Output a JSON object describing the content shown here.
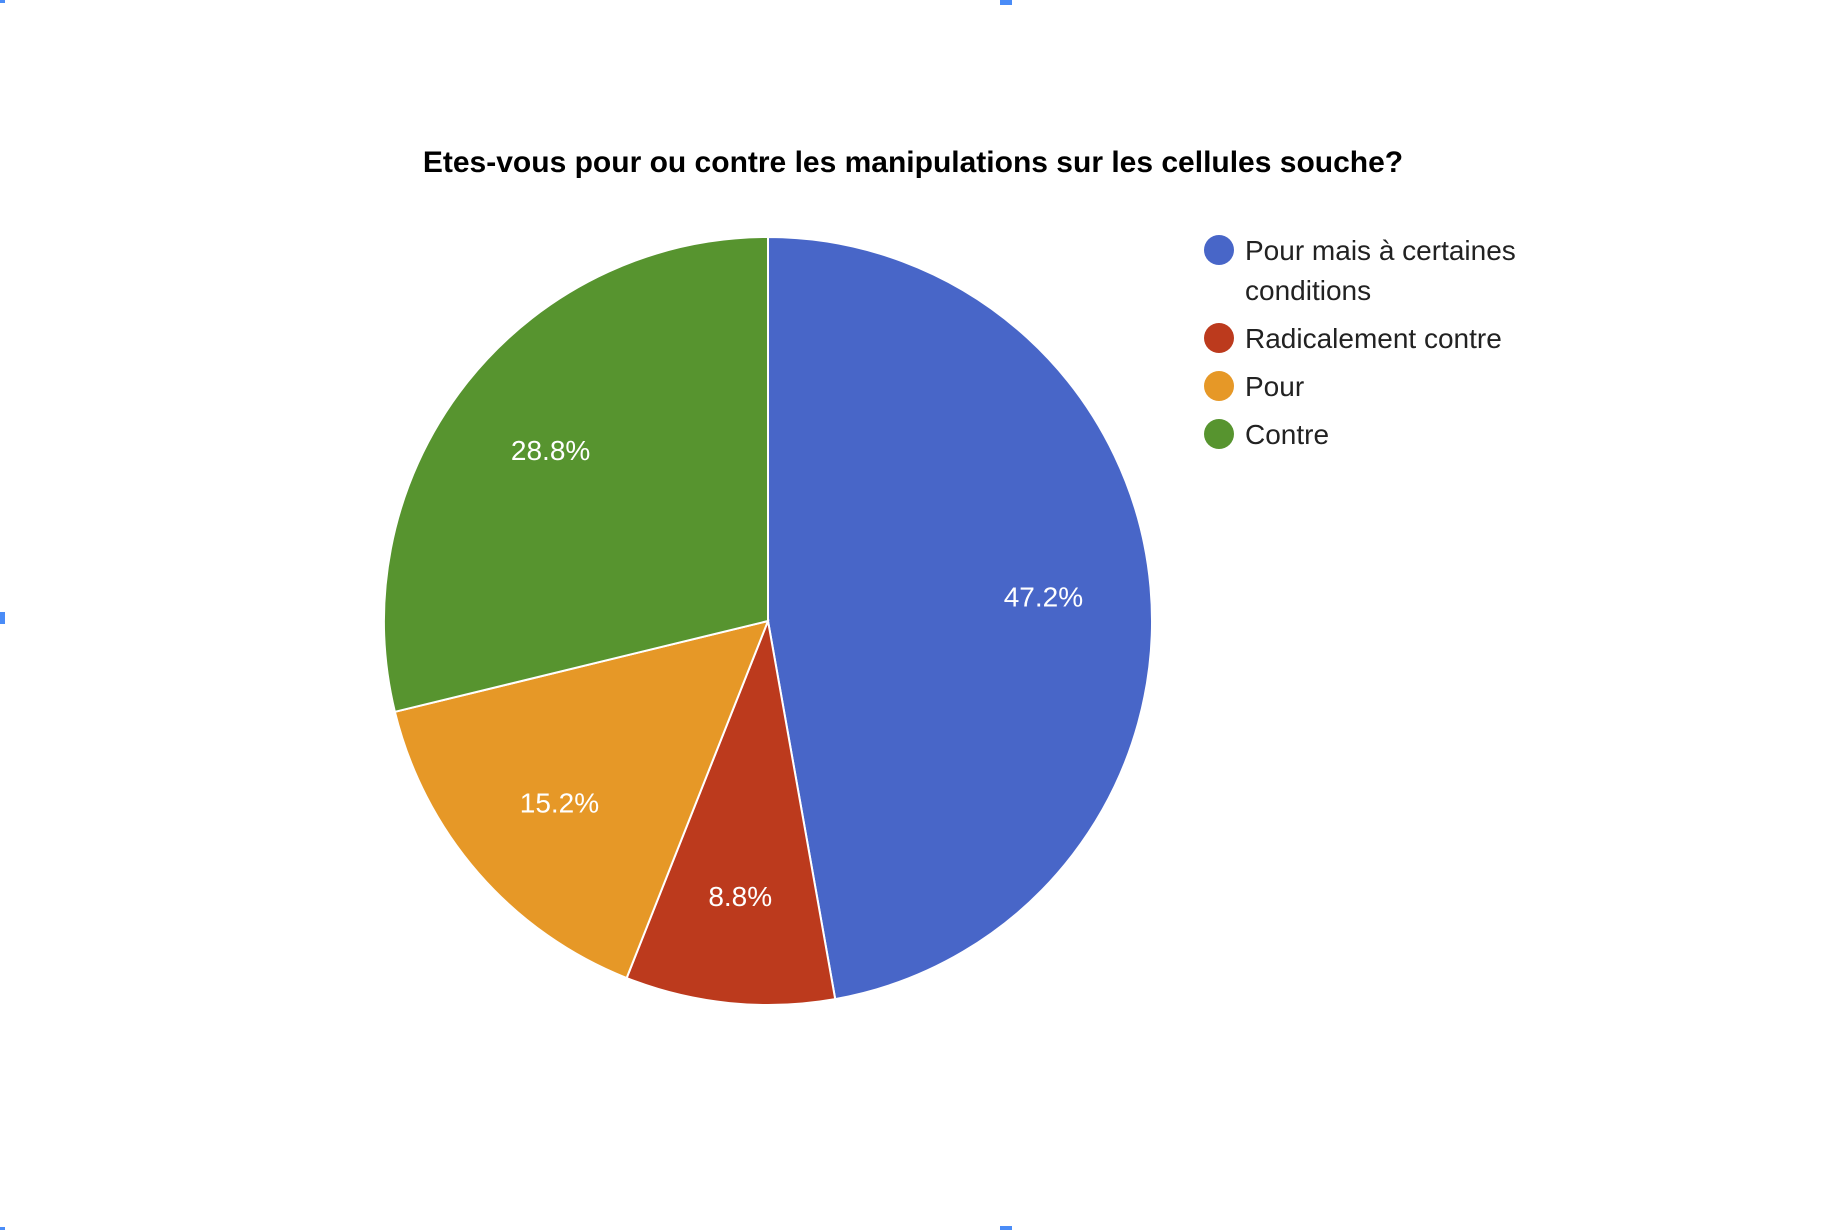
{
  "chart_data": {
    "type": "pie",
    "title": "Etes-vous pour ou contre les manipulations sur les cellules souche?",
    "categories": [
      "Pour mais à certaines conditions",
      "Radicalement contre",
      "Pour",
      "Contre"
    ],
    "values": [
      47.2,
      8.8,
      15.2,
      28.8
    ],
    "value_labels": [
      "47.2%",
      "8.8%",
      "15.2%",
      "28.8%"
    ],
    "colors": [
      "#4866c8",
      "#bc3a1d",
      "#e69827",
      "#57942f"
    ],
    "legend_placement": "right",
    "legend_entries": [
      {
        "lines": [
          "Pour mais à certaines",
          "conditions"
        ],
        "color": "#4866c8"
      },
      {
        "lines": [
          "Radicalement contre"
        ],
        "color": "#bc3a1d"
      },
      {
        "lines": [
          "Pour"
        ],
        "color": "#e69827"
      },
      {
        "lines": [
          "Contre"
        ],
        "color": "#57942f"
      }
    ]
  }
}
